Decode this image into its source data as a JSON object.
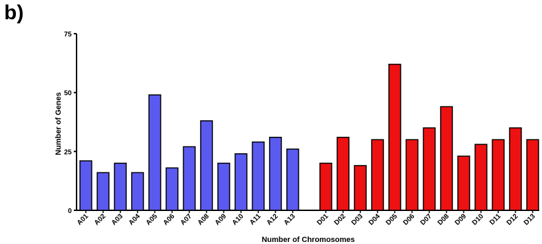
{
  "panel_label": "b)",
  "chart_data": {
    "type": "bar",
    "title": "",
    "xlabel": "Number of Chromosomes",
    "ylabel": "Number of Genes",
    "ylim": [
      0,
      75
    ],
    "yticks": [
      0,
      25,
      50,
      75
    ],
    "grid": false,
    "legend": "none",
    "series": [
      {
        "color": "#5a5af0",
        "categories": [
          "A01",
          "A02",
          "A03",
          "A04",
          "A05",
          "A06",
          "A07",
          "A08",
          "A09",
          "A10",
          "A11",
          "A12",
          "A13"
        ],
        "values": [
          21,
          16,
          20,
          16,
          49,
          18,
          27,
          38,
          20,
          24,
          29,
          31,
          26
        ]
      },
      {
        "color": "#ee1111",
        "categories": [
          "D01",
          "D02",
          "D03",
          "D04",
          "D05",
          "D06",
          "D07",
          "D08",
          "D09",
          "D10",
          "D11",
          "D12",
          "D13"
        ],
        "values": [
          20,
          31,
          19,
          30,
          62,
          30,
          35,
          44,
          23,
          28,
          30,
          35,
          30
        ]
      }
    ]
  }
}
